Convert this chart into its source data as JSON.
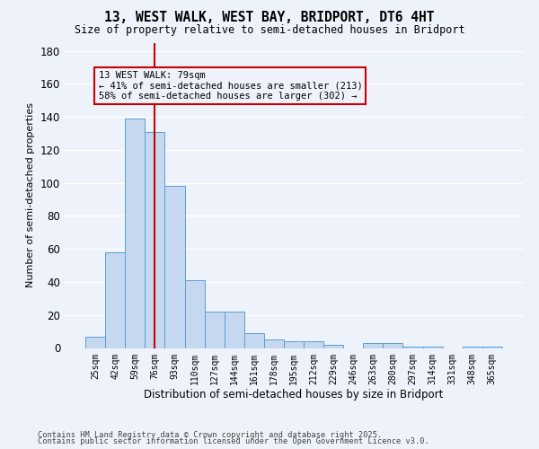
{
  "title1": "13, WEST WALK, WEST BAY, BRIDPORT, DT6 4HT",
  "title2": "Size of property relative to semi-detached houses in Bridport",
  "xlabel": "Distribution of semi-detached houses by size in Bridport",
  "ylabel": "Number of semi-detached properties",
  "categories": [
    "25sqm",
    "42sqm",
    "59sqm",
    "76sqm",
    "93sqm",
    "110sqm",
    "127sqm",
    "144sqm",
    "161sqm",
    "178sqm",
    "195sqm",
    "212sqm",
    "229sqm",
    "246sqm",
    "263sqm",
    "280sqm",
    "297sqm",
    "314sqm",
    "331sqm",
    "348sqm",
    "365sqm"
  ],
  "values": [
    7,
    58,
    139,
    131,
    98,
    41,
    22,
    22,
    9,
    5,
    4,
    4,
    2,
    0,
    3,
    3,
    1,
    1,
    0,
    1,
    1
  ],
  "bar_color": "#c5d8f0",
  "bar_edge_color": "#5a9fd4",
  "vline_x": 3,
  "vline_color": "#cc0000",
  "annotation_title": "13 WEST WALK: 79sqm",
  "annotation_line1": "← 41% of semi-detached houses are smaller (213)",
  "annotation_line2": "58% of semi-detached houses are larger (302) →",
  "annotation_box_color": "#cc0000",
  "ylim": [
    0,
    185
  ],
  "yticks": [
    0,
    20,
    40,
    60,
    80,
    100,
    120,
    140,
    160,
    180
  ],
  "footnote1": "Contains HM Land Registry data © Crown copyright and database right 2025.",
  "footnote2": "Contains public sector information licensed under the Open Government Licence v3.0.",
  "bg_color": "#eef2fa",
  "grid_color": "#ffffff"
}
